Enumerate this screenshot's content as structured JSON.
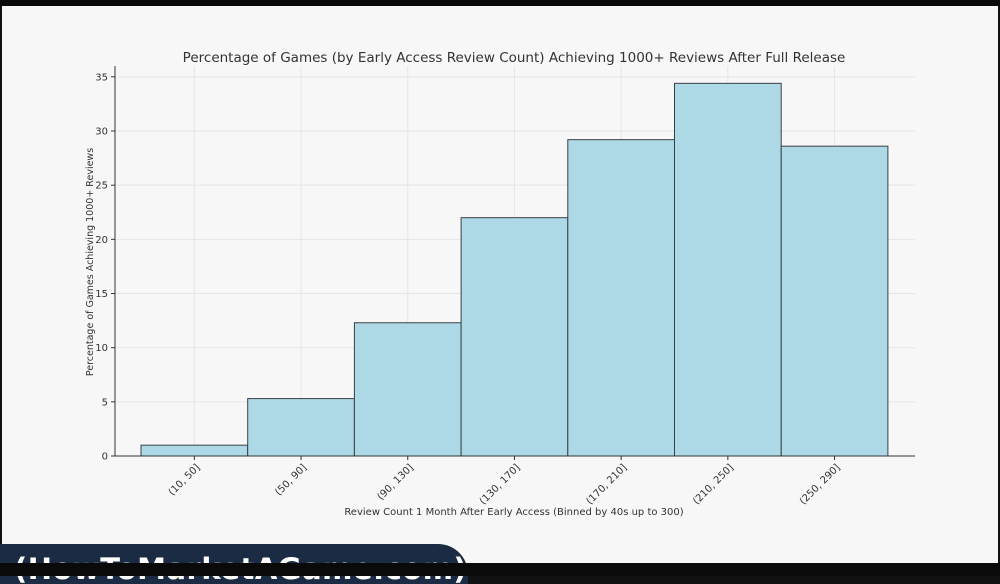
{
  "chart_data": {
    "type": "bar",
    "title": "Percentage of Games (by Early Access Review Count) Achieving 1000+ Reviews After Full Release",
    "xlabel": "Review Count 1 Month After Early Access (Binned by 40s up to 300)",
    "ylabel": "Percentage of Games Achieving 1000+ Reviews",
    "categories": [
      "(10, 50]",
      "(50, 90]",
      "(90, 130]",
      "(130, 170]",
      "(170, 210]",
      "(210, 250]",
      "(250, 290]"
    ],
    "values": [
      1.0,
      5.3,
      12.3,
      22.0,
      29.2,
      34.4,
      28.6
    ],
    "ylim": [
      0,
      36
    ],
    "yticks": [
      0,
      5,
      10,
      15,
      20,
      25,
      30,
      35
    ],
    "grid": true,
    "bar_color": "#add8e6",
    "bar_edge_color": "#3a3f44"
  },
  "caption": {
    "text": "(HowToMarketAGame.com)"
  }
}
